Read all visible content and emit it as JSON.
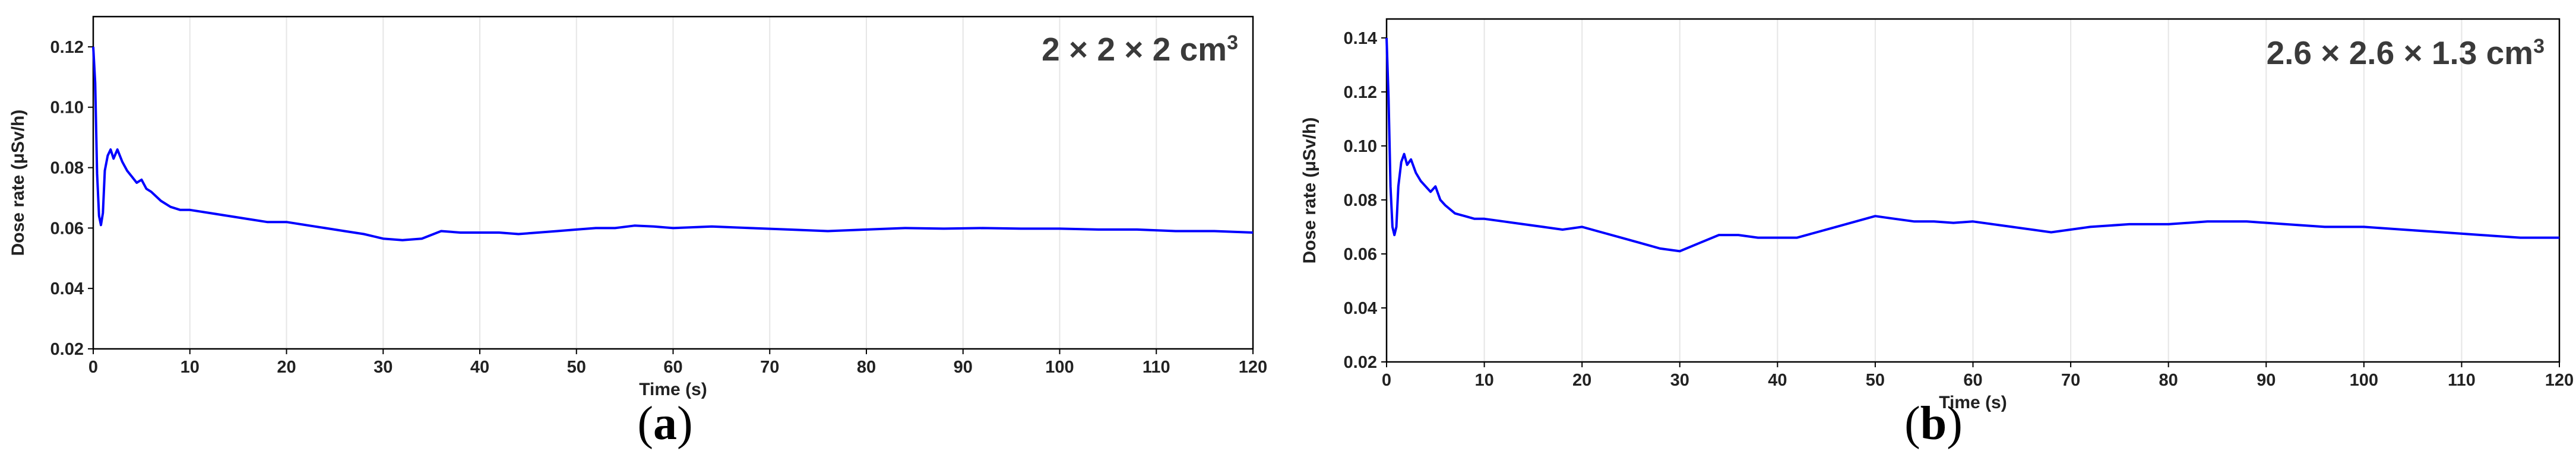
{
  "chart_data": [
    {
      "type": "line",
      "panel_label": "a",
      "annotation": "2 × 2 × 2 cm",
      "annotation_superscript": "3",
      "xlabel": "Time (s)",
      "ylabel": "Dose rate (μSv/h)",
      "xlim": [
        0,
        120
      ],
      "ylim": [
        0.02,
        0.13
      ],
      "xticks": [
        "0",
        "10",
        "20",
        "30",
        "40",
        "50",
        "60",
        "70",
        "80",
        "90",
        "100",
        "110",
        "120"
      ],
      "yticks": [
        "0.02",
        "0.04",
        "0.06",
        "0.08",
        "0.10",
        "0.12"
      ],
      "grid": "vertical",
      "line_color": "#0000ff",
      "series": [
        {
          "x": [
            0,
            0.2,
            0.4,
            0.6,
            0.8,
            1.0,
            1.2,
            1.5,
            1.8,
            2.1,
            2.5,
            3.0,
            3.5,
            4.0,
            4.5,
            5.0,
            5.5,
            6.0,
            7.0,
            8.0,
            9.0,
            10,
            12,
            14,
            16,
            18,
            20,
            22,
            24,
            26,
            28,
            30,
            32,
            34,
            36,
            38,
            40,
            42,
            44,
            46,
            48,
            50,
            52,
            54,
            56,
            58,
            60,
            64,
            68,
            72,
            76,
            80,
            84,
            88,
            92,
            96,
            100,
            104,
            108,
            112,
            116,
            120
          ],
          "y": [
            0.12,
            0.108,
            0.078,
            0.064,
            0.061,
            0.065,
            0.079,
            0.084,
            0.086,
            0.083,
            0.086,
            0.082,
            0.079,
            0.077,
            0.075,
            0.076,
            0.073,
            0.072,
            0.069,
            0.067,
            0.066,
            0.066,
            0.065,
            0.064,
            0.063,
            0.062,
            0.062,
            0.061,
            0.06,
            0.059,
            0.058,
            0.0565,
            0.056,
            0.0565,
            0.059,
            0.0585,
            0.0585,
            0.0585,
            0.058,
            0.0585,
            0.059,
            0.0595,
            0.06,
            0.06,
            0.0608,
            0.0605,
            0.06,
            0.0605,
            0.06,
            0.0595,
            0.059,
            0.0595,
            0.06,
            0.0598,
            0.06,
            0.0598,
            0.0598,
            0.0595,
            0.0595,
            0.059,
            0.059,
            0.0585
          ]
        }
      ]
    },
    {
      "type": "line",
      "panel_label": "b",
      "annotation": "2.6 × 2.6 × 1.3 cm",
      "annotation_superscript": "3",
      "xlabel": "Time (s)",
      "ylabel": "Dose rate (μSv/h)",
      "xlim": [
        0,
        120
      ],
      "ylim": [
        0.02,
        0.147
      ],
      "xticks": [
        "0",
        "10",
        "20",
        "30",
        "40",
        "50",
        "60",
        "70",
        "80",
        "90",
        "100",
        "110",
        "120"
      ],
      "yticks": [
        "0.02",
        "0.04",
        "0.06",
        "0.08",
        "0.10",
        "0.12",
        "0.14"
      ],
      "grid": "vertical",
      "line_color": "#0000ff",
      "series": [
        {
          "x": [
            0,
            0.2,
            0.4,
            0.6,
            0.8,
            1.0,
            1.2,
            1.5,
            1.8,
            2.1,
            2.5,
            3.0,
            3.5,
            4.0,
            4.5,
            5.0,
            5.5,
            6.0,
            7.0,
            8.0,
            9.0,
            10,
            12,
            14,
            16,
            18,
            20,
            22,
            24,
            26,
            28,
            30,
            32,
            34,
            36,
            38,
            40,
            42,
            44,
            46,
            48,
            50,
            52,
            54,
            56,
            58,
            60,
            64,
            68,
            72,
            76,
            80,
            84,
            88,
            92,
            96,
            100,
            104,
            108,
            112,
            116,
            120
          ],
          "y": [
            0.14,
            0.118,
            0.085,
            0.07,
            0.067,
            0.07,
            0.085,
            0.094,
            0.097,
            0.093,
            0.095,
            0.09,
            0.087,
            0.085,
            0.083,
            0.085,
            0.08,
            0.078,
            0.075,
            0.074,
            0.073,
            0.073,
            0.072,
            0.071,
            0.07,
            0.069,
            0.07,
            0.068,
            0.066,
            0.064,
            0.062,
            0.061,
            0.064,
            0.067,
            0.067,
            0.066,
            0.066,
            0.066,
            0.068,
            0.07,
            0.072,
            0.074,
            0.073,
            0.072,
            0.072,
            0.0715,
            0.072,
            0.07,
            0.068,
            0.07,
            0.071,
            0.071,
            0.072,
            0.072,
            0.071,
            0.07,
            0.07,
            0.069,
            0.068,
            0.067,
            0.066,
            0.066
          ]
        }
      ]
    }
  ]
}
